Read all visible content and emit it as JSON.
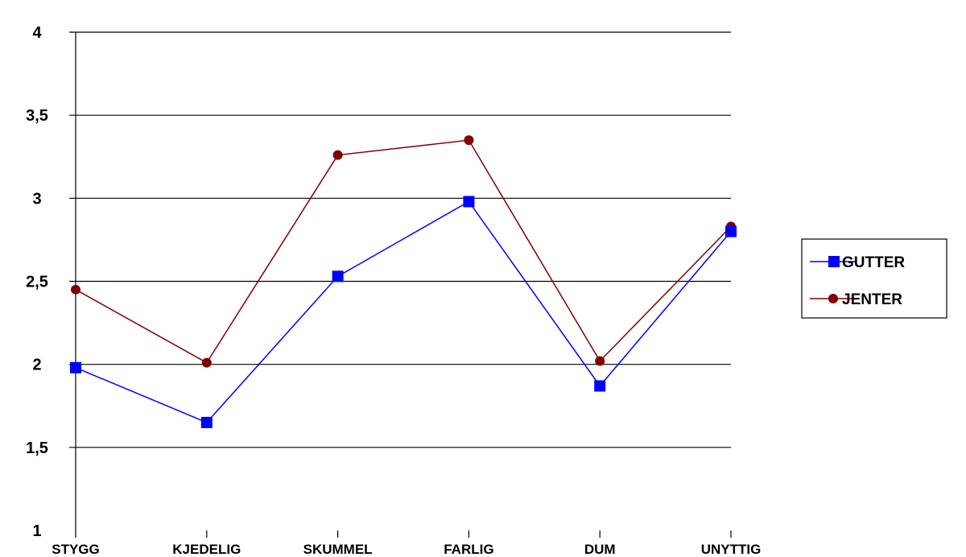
{
  "chart_data": {
    "type": "line",
    "categories": [
      "STYGG",
      "KJEDELIG",
      "SKUMMEL",
      "FARLIG",
      "DUM",
      "UNYTTIG"
    ],
    "ylim": [
      1,
      4
    ],
    "yticks": [
      "1",
      "1,5",
      "2",
      "2,5",
      "3",
      "3,5",
      "4"
    ],
    "yticks_values": [
      1,
      1.5,
      2,
      2.5,
      3,
      3.5,
      4
    ],
    "grid": true,
    "legend_position": "right",
    "series": [
      {
        "name": "GUTTER",
        "color": "#0000ff",
        "marker": "square",
        "values": [
          1.98,
          1.65,
          2.53,
          2.98,
          1.87,
          2.8
        ]
      },
      {
        "name": "JENTER",
        "color": "#800000",
        "marker": "circle",
        "values": [
          2.45,
          2.01,
          3.26,
          3.35,
          2.02,
          2.83
        ]
      }
    ]
  }
}
